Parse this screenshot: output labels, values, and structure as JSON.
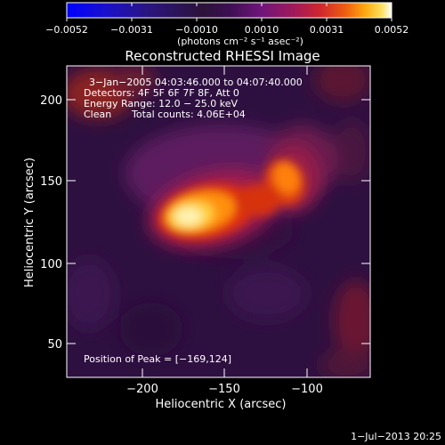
{
  "colorbar": {
    "tick_labels": [
      "−0.0052",
      "−0.0031",
      "−0.0010",
      "0.0010",
      "0.0031",
      "0.0052"
    ],
    "unit_label": "(photons cm⁻² s⁻¹ asec⁻²)",
    "range": [
      -0.0052,
      0.0052
    ],
    "colors": [
      "#0000ff",
      "#1a10cc",
      "#2a1580",
      "#2d1238",
      "#3c0f52",
      "#70157a",
      "#a01a5a",
      "#d0262e",
      "#f06010",
      "#ffaa10",
      "#ffe060",
      "#ffffff"
    ]
  },
  "image": {
    "title": "Reconstructed RHESSI Image",
    "time_range": "3−Jan−2005 04:03:46.000 to 04:07:40.000",
    "detectors": "Detectors: 4F 5F 6F 7F 8F, Att 0",
    "energy_range": "Energy Range: 12.0 − 25.0 keV",
    "clean_label": "Clean",
    "total_counts": "Total counts: 4.06E+04",
    "peak_position": "Position of Peak = [−169,124]",
    "xlabel": "Heliocentric X (arcsec)",
    "ylabel": "Heliocentric Y (arcsec)",
    "x_ticks": [
      "−200",
      "−150",
      "−100"
    ],
    "y_ticks": [
      "50",
      "100",
      "150",
      "200"
    ],
    "xlim": [
      -248,
      -49
    ],
    "ylim": [
      28,
      222
    ]
  },
  "footer": {
    "timestamp": "1−Jul−2013 20:25"
  }
}
